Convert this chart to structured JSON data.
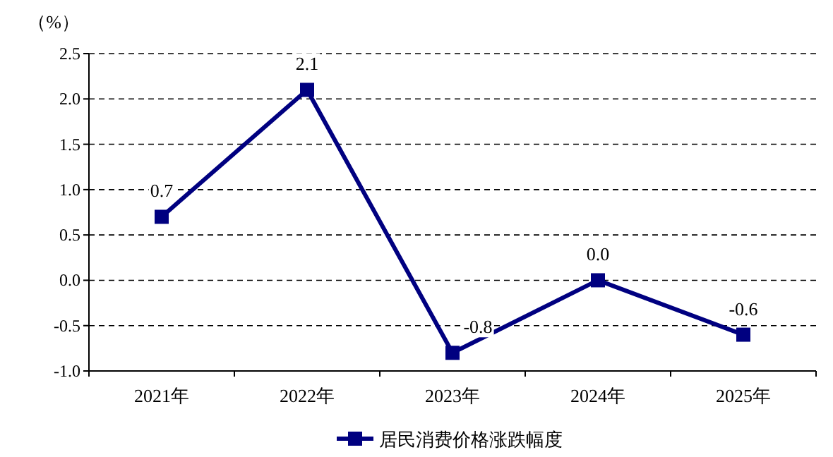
{
  "chart_data": {
    "type": "line",
    "ylabel": "（%）",
    "categories": [
      "2021年",
      "2022年",
      "2023年",
      "2024年",
      "2025年"
    ],
    "series": [
      {
        "name": "居民消费价格涨跌幅度",
        "color": "#000080",
        "values": [
          0.7,
          2.1,
          -0.8,
          0.0,
          -0.6
        ],
        "value_labels": [
          "0.7",
          "2.1",
          "-0.8",
          "0.0",
          "-0.6"
        ]
      }
    ],
    "ylim": [
      -1,
      2.5
    ],
    "yticks": [
      {
        "value": -1,
        "label": "-1.0"
      },
      {
        "value": -0.5,
        "label": "-0.5"
      },
      {
        "value": 0,
        "label": "0.0"
      },
      {
        "value": 0.5,
        "label": "0.5"
      },
      {
        "value": 1,
        "label": "1.0"
      },
      {
        "value": 1.5,
        "label": "1.5"
      },
      {
        "value": 2,
        "label": "2.0"
      },
      {
        "value": 2.5,
        "label": "2.5"
      }
    ],
    "grid": "y",
    "legend": "bottom",
    "marker": "square",
    "line_style": "solid"
  }
}
